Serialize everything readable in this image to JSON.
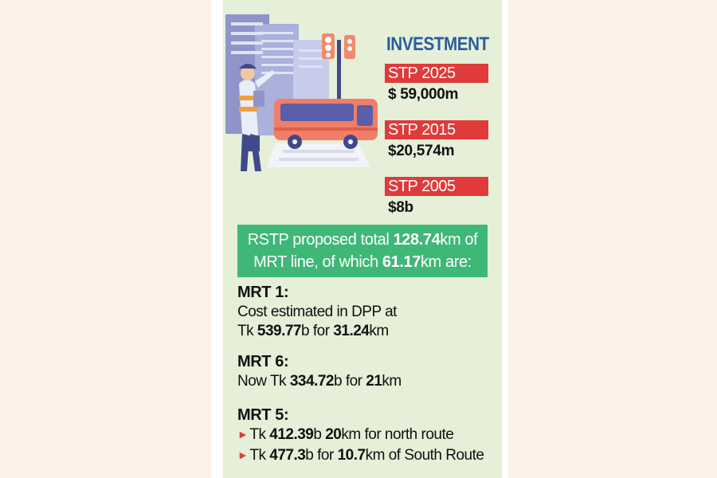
{
  "investment": {
    "title": "INVESTMENT",
    "items": [
      {
        "label": "STP 2025",
        "value": "$ 59,000m"
      },
      {
        "label": "STP 2015",
        "value": "$20,574m"
      },
      {
        "label": "STP 2005",
        "value": "$8b"
      }
    ]
  },
  "rstp": {
    "prefix": "RSTP proposed total ",
    "total": "128.74",
    "unit1": "km of",
    "line2_prefix": "MRT line, of which ",
    "part": "61.17",
    "unit2": "km are:"
  },
  "mrt1": {
    "title": "MRT 1:",
    "line1": "Cost estimated in DPP at",
    "tk": "Tk ",
    "cost": "539.77",
    "b_for": "b for ",
    "length": "31.24",
    "km": "km"
  },
  "mrt6": {
    "title": "MRT 6:",
    "now_tk": "Now Tk ",
    "cost": "334.72",
    "b_for": "b for ",
    "length": "21",
    "km": "km"
  },
  "mrt5": {
    "title": "MRT 5:",
    "north": {
      "tk": "Tk ",
      "cost": "412.39",
      "b": "b ",
      "length": "20",
      "rest": "km for north route"
    },
    "south": {
      "tk": "Tk ",
      "cost": "477.3",
      "b_for": "b for ",
      "length": "10.7",
      "rest": "km of South Route"
    }
  },
  "colors": {
    "page_bg": "#fdf0e6",
    "card_bg": "#e6efd8",
    "title_blue": "#2b5d9e",
    "label_red": "#e03a3a",
    "box_green": "#3fb777"
  },
  "icons": [
    "traffic-police-icon",
    "bus-icon",
    "traffic-light-icon",
    "buildings-icon",
    "arrow-bullet-icon"
  ]
}
